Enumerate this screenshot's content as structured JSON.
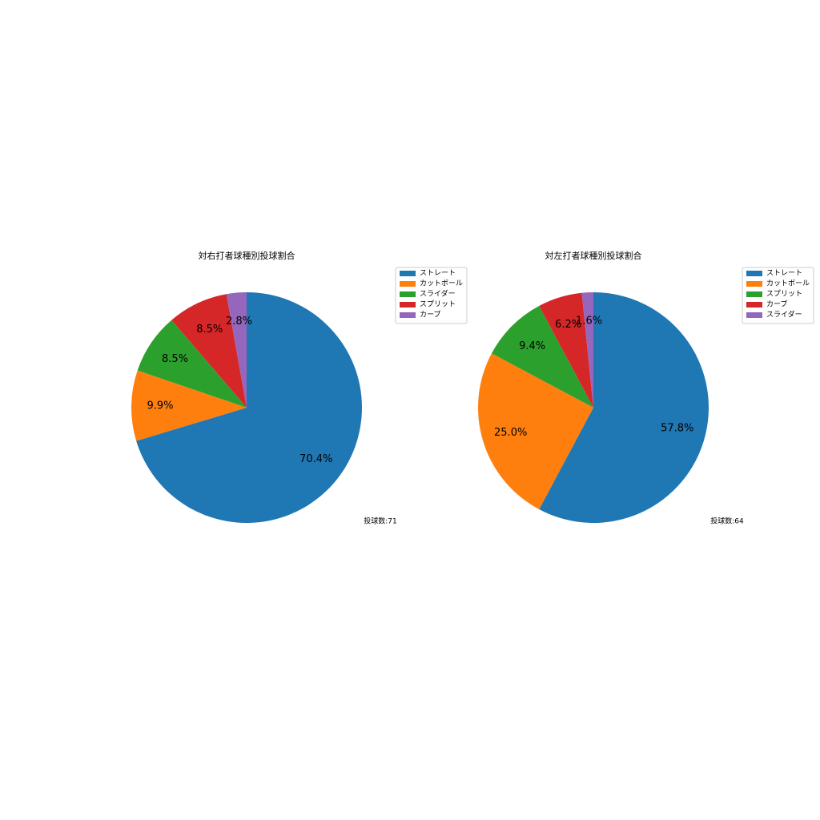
{
  "chart_data": [
    {
      "type": "pie",
      "title": "対右打者球種別投球割合",
      "categories": [
        "ストレート",
        "カットボール",
        "スライダー",
        "スプリット",
        "カーブ"
      ],
      "values": [
        70.4,
        9.9,
        8.5,
        8.5,
        2.8
      ],
      "value_labels": [
        "70.4%",
        "9.9%",
        "8.5%",
        "8.5%",
        "2.8%"
      ],
      "colors": [
        "#1f77b4",
        "#ff7f0e",
        "#2ca02c",
        "#d62728",
        "#9467bd"
      ],
      "annotation": "投球数:71",
      "legend": "upper right"
    },
    {
      "type": "pie",
      "title": "対左打者球種別投球割合",
      "categories": [
        "ストレート",
        "カットボール",
        "スプリット",
        "カーブ",
        "スライダー"
      ],
      "values": [
        57.8,
        25.0,
        9.4,
        6.2,
        1.6
      ],
      "value_labels": [
        "57.8%",
        "25.0%",
        "9.4%",
        "6.2%",
        "1.6%"
      ],
      "colors": [
        "#1f77b4",
        "#ff7f0e",
        "#2ca02c",
        "#d62728",
        "#9467bd"
      ],
      "annotation": "投球数:64",
      "legend": "upper right"
    }
  ]
}
